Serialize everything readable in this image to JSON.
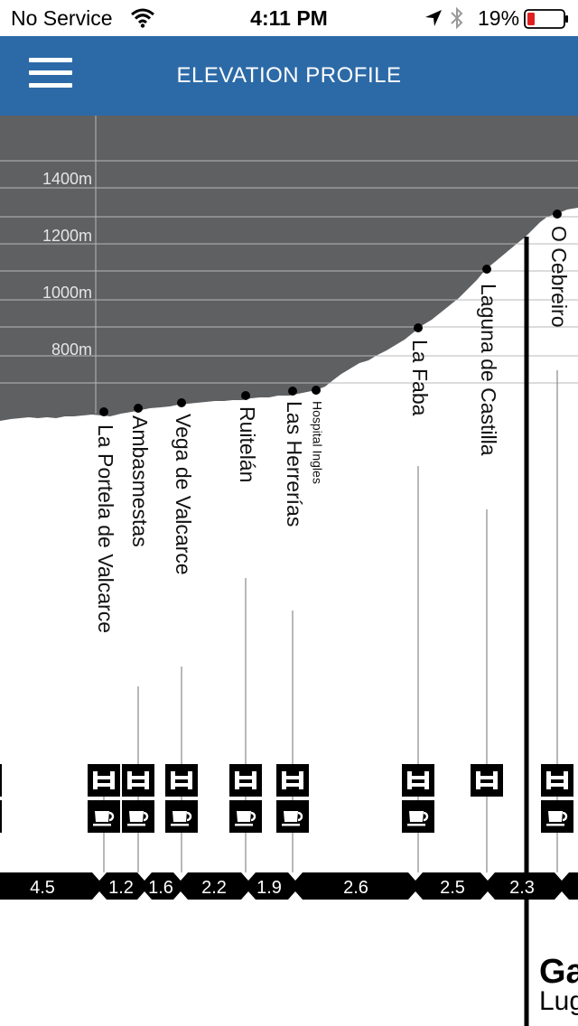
{
  "status_bar": {
    "carrier": "No Service",
    "time": "4:11 PM",
    "battery": "19%",
    "icons": [
      "wifi-icon",
      "location-arrow-icon",
      "bluetooth-icon",
      "battery-icon"
    ],
    "battery_color": "#e02020"
  },
  "nav": {
    "title": "ELEVATION PROFILE",
    "menu_icon": "hamburger-menu-icon",
    "bar_color": "#2c6aa7"
  },
  "elevation_labels": [
    "1400m",
    "1200m",
    "1000m",
    "800m"
  ],
  "towns": [
    {
      "name": "La Portela de Valcarce",
      "small": false,
      "albergue": true,
      "cafe": true
    },
    {
      "name": "Ambasmestas",
      "small": false,
      "albergue": true,
      "cafe": true
    },
    {
      "name": "Vega de Valcarce",
      "small": false,
      "albergue": true,
      "cafe": true
    },
    {
      "name": "Ruitelán",
      "small": false,
      "albergue": true,
      "cafe": true
    },
    {
      "name": "Las Herrerías",
      "small": false,
      "albergue": true,
      "cafe": true
    },
    {
      "name": "Hospital Ingles",
      "small": true,
      "albergue": false,
      "cafe": false
    },
    {
      "name": "La Faba",
      "small": false,
      "albergue": true,
      "cafe": true
    },
    {
      "name": "Laguna de Castilla",
      "small": false,
      "albergue": true,
      "cafe": false
    },
    {
      "name": "O Cebreiro",
      "small": false,
      "albergue": true,
      "cafe": true
    }
  ],
  "distances": [
    "4.5",
    "1.2",
    "1.6",
    "2.2",
    "1.9",
    "2.6",
    "2.5",
    "2.3"
  ],
  "region": {
    "name": "Ga",
    "subname": "Lug"
  },
  "colors": {
    "profile_fill": "#5f6062",
    "ink": "#000000"
  }
}
